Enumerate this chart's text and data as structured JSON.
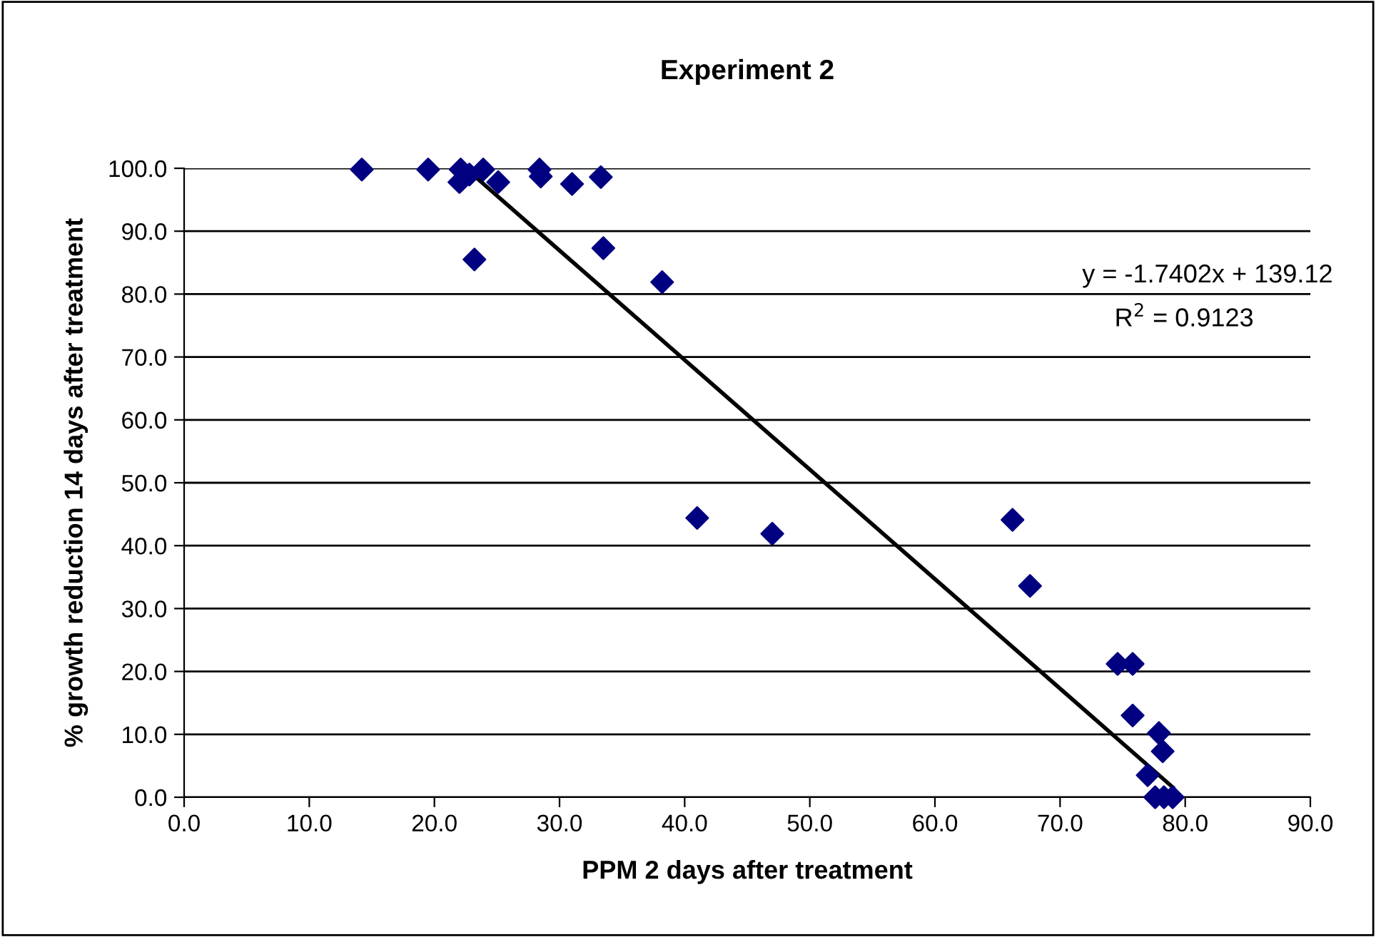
{
  "chart_data": {
    "type": "scatter",
    "title": "Experiment 2",
    "xlabel": "PPM 2 days after treatment",
    "ylabel": "% growth reduction 14 days after treatment",
    "series": [
      {
        "color": "#000080",
        "marker": "diamond",
        "x": [
          14.2,
          19.5,
          22.1,
          22.0,
          22.8,
          23.9,
          25.1,
          28.4,
          28.5,
          31.0,
          33.3,
          23.2,
          33.5,
          38.2,
          41.0,
          47.0,
          66.2,
          67.6,
          74.6,
          75.8,
          75.8,
          77.9,
          78.2,
          77.0,
          77.6,
          78.3,
          79.0
        ],
        "values": [
          99.8,
          99.8,
          99.8,
          97.8,
          99.0,
          99.8,
          97.8,
          99.8,
          98.7,
          97.5,
          98.6,
          85.5,
          87.3,
          81.9,
          44.4,
          41.9,
          44.1,
          33.6,
          21.2,
          21.2,
          13.0,
          10.2,
          7.3,
          3.5,
          0,
          0,
          0
        ]
      },
      {
        "type": "line",
        "color": "#000000",
        "marker": "none",
        "line_style": "solid",
        "x": [
          22.5,
          79.0
        ],
        "values": [
          100.0,
          1.6
        ]
      }
    ],
    "annotations": [
      "y = -1.7402x + 139.12",
      "R$^{2}$ = 0.9123"
    ],
    "xlim": [
      0,
      90
    ],
    "ylim": [
      0,
      100
    ],
    "xticks": [
      {
        "value": 0,
        "label": "0.0"
      },
      {
        "value": 10,
        "label": "10.0"
      },
      {
        "value": 20,
        "label": "20.0"
      },
      {
        "value": 30,
        "label": "30.0"
      },
      {
        "value": 40,
        "label": "40.0"
      },
      {
        "value": 50,
        "label": "50.0"
      },
      {
        "value": 60,
        "label": "60.0"
      },
      {
        "value": 70,
        "label": "70.0"
      },
      {
        "value": 80,
        "label": "80.0"
      },
      {
        "value": 90,
        "label": "90.0"
      }
    ],
    "yticks": [
      {
        "value": 0,
        "label": "0.0"
      },
      {
        "value": 10,
        "label": "10.0"
      },
      {
        "value": 20,
        "label": "20.0"
      },
      {
        "value": 30,
        "label": "30.0"
      },
      {
        "value": 40,
        "label": "40.0"
      },
      {
        "value": 50,
        "label": "50.0"
      },
      {
        "value": 60,
        "label": "60.0"
      },
      {
        "value": 70,
        "label": "70.0"
      },
      {
        "value": 80,
        "label": "80.0"
      },
      {
        "value": 90,
        "label": "90.0"
      },
      {
        "value": 100,
        "label": "100.0"
      }
    ],
    "grid": "y",
    "legend": false
  }
}
